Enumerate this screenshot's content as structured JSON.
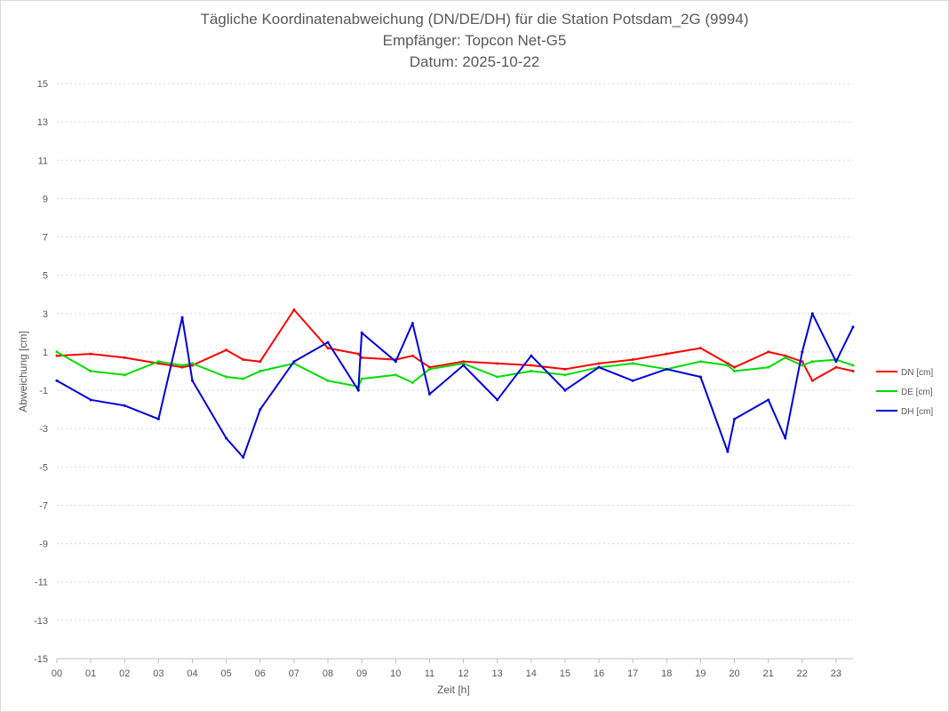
{
  "chart_data": {
    "type": "line",
    "title": "Tägliche Koordinatenabweichung (DN/DE/DH) für die Station Potsdam_2G (9994)",
    "subtitle_1": "Empfänger: Topcon Net-G5",
    "subtitle_2": "Datum: 2025-10-22",
    "xlabel": "Zeit [h]",
    "ylabel": "Abweichung [cm]",
    "xlim": [
      0,
      23.5
    ],
    "ylim": [
      -15,
      15
    ],
    "grid": true,
    "legend_position": "right",
    "x_ticks": [
      "00",
      "01",
      "02",
      "03",
      "04",
      "05",
      "06",
      "07",
      "08",
      "09",
      "10",
      "11",
      "12",
      "13",
      "14",
      "15",
      "16",
      "17",
      "18",
      "19",
      "20",
      "21",
      "22",
      "23"
    ],
    "y_ticks": [
      15,
      13,
      11,
      9,
      7,
      5,
      3,
      1,
      -1,
      -3,
      -5,
      -7,
      -9,
      -11,
      -13,
      -15
    ],
    "x": [
      0,
      1,
      2,
      3,
      3.7,
      4,
      5,
      5.5,
      6,
      7,
      8,
      8.9,
      9,
      10,
      10.5,
      11,
      12,
      13,
      14,
      15,
      16,
      17,
      18,
      19,
      19.8,
      20,
      21,
      21.5,
      22,
      22.3,
      23,
      23.5
    ],
    "series": [
      {
        "name": "DN [cm]",
        "color": "#ff0000",
        "values": [
          0.8,
          0.9,
          0.7,
          0.4,
          0.2,
          0.3,
          1.1,
          0.6,
          0.5,
          3.2,
          1.2,
          0.9,
          0.7,
          0.6,
          0.8,
          0.2,
          0.5,
          0.4,
          0.3,
          0.1,
          0.4,
          0.6,
          0.9,
          1.2,
          0.4,
          0.2,
          1.0,
          0.8,
          0.5,
          -0.5,
          0.2,
          0.0
        ]
      },
      {
        "name": "DE [cm]",
        "color": "#00dd00",
        "values": [
          1.0,
          0.0,
          -0.2,
          0.5,
          0.3,
          0.4,
          -0.3,
          -0.4,
          0.0,
          0.4,
          -0.5,
          -0.8,
          -0.4,
          -0.2,
          -0.6,
          0.1,
          0.4,
          -0.3,
          0.0,
          -0.2,
          0.2,
          0.4,
          0.1,
          0.5,
          0.3,
          0.0,
          0.2,
          0.7,
          0.3,
          0.5,
          0.6,
          0.3
        ]
      },
      {
        "name": "DH [cm]",
        "color": "#0000dd",
        "values": [
          -0.5,
          -1.5,
          -1.8,
          -2.5,
          2.8,
          -0.5,
          -3.5,
          -4.5,
          -2.0,
          0.5,
          1.5,
          -1.0,
          2.0,
          0.5,
          2.5,
          -1.2,
          0.3,
          -1.5,
          0.8,
          -1.0,
          0.2,
          -0.5,
          0.1,
          -0.3,
          -4.2,
          -2.5,
          -1.5,
          -3.5,
          1.0,
          3.0,
          0.5,
          2.3
        ]
      }
    ]
  }
}
